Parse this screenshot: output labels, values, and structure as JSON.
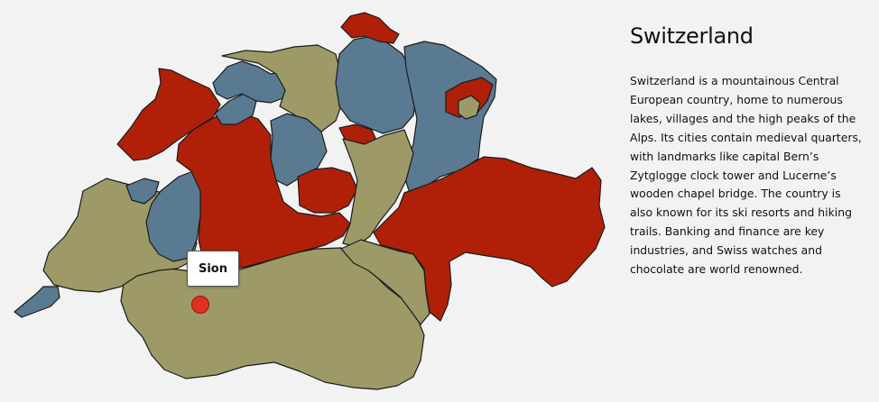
{
  "info": {
    "title": "Switzerland",
    "description": "Switzerland is a mountainous Central European country, home to numerous lakes, villages and the high peaks of the Alps. Its cities contain medieval quarters, with landmarks like capital Bern’s Zytglogge clock tower and Lucerne’s wooden chapel bridge. The country is also known for its ski resorts and hiking trails. Banking and finance are key industries, and Swiss watches and chocolate are world renowned."
  },
  "tooltip": {
    "label": "Sion"
  },
  "colors": {
    "background": "#f2f2f2",
    "red_region": "#b02008",
    "blue_region": "#5a7a92",
    "olive_region": "#9d9a68",
    "marker": "#e0301e",
    "border": "#1b1b1b"
  }
}
